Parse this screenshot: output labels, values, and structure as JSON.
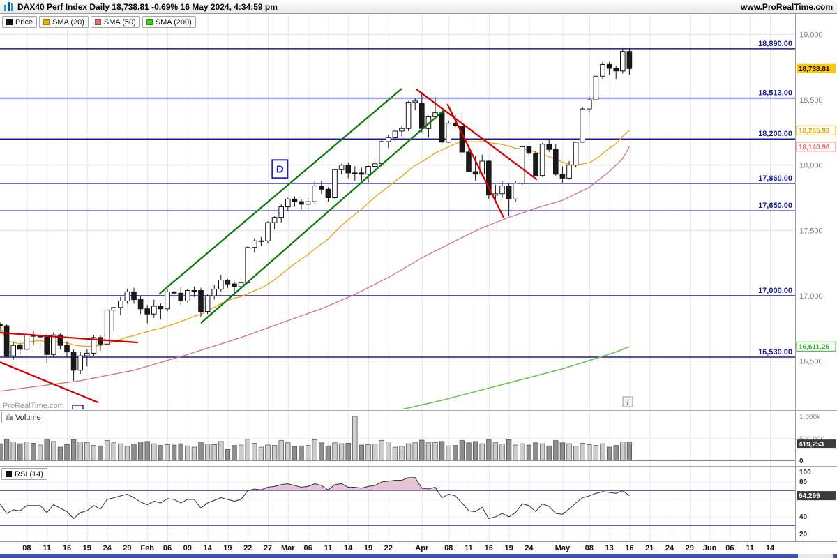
{
  "title_bar": {
    "instrument": "DAX40 Perf Index Daily",
    "price": "18,738.81",
    "change": "-0.69%",
    "datetime": "16 May 2024, 4:34:59 pm",
    "website": "www.ProRealTime.com"
  },
  "legend": {
    "price": {
      "label": "Price",
      "color": "#141414"
    },
    "smas": [
      {
        "label": "SMA (20)",
        "color": "#f0b000"
      },
      {
        "label": "SMA (50)",
        "color": "#e06e6e"
      },
      {
        "label": "SMA (200)",
        "color": "#3fd40f"
      }
    ]
  },
  "volume_panel": {
    "label": "Volume",
    "axis_labels": [
      {
        "v": 1000,
        "label": "1,000k"
      },
      {
        "v": 500,
        "label": "500,000"
      },
      {
        "v": 0,
        "label": "0"
      }
    ],
    "current_label": "419,253",
    "current_value": 419.253
  },
  "rsi_panel": {
    "label": "RSI (14)",
    "axis_values": [
      100,
      80,
      40,
      20
    ],
    "bands": [
      70,
      30
    ],
    "current_label": "64.299",
    "current_value": 64.299
  },
  "watermark": "ProRealTime.com",
  "info_icon_glyph": "i",
  "chart_data": {
    "type": "candlestick",
    "title": "DAX40 Perf Index Daily",
    "last_price": 18738.81,
    "change_pct": -0.69,
    "legend_position": "top-left",
    "grid": true,
    "y_ticks": [
      {
        "v": 19000,
        "label": "19,000"
      },
      {
        "v": 18500,
        "label": "18,500"
      },
      {
        "v": 18000,
        "label": "18,000"
      },
      {
        "v": 17500,
        "label": "17,500"
      },
      {
        "v": 17000,
        "label": "17,000"
      },
      {
        "v": 16500,
        "label": "16,500"
      }
    ],
    "levels": [
      {
        "v": 18890,
        "label": "18,890.00"
      },
      {
        "v": 18513,
        "label": "18,513.00"
      },
      {
        "v": 18200,
        "label": "18,200.00"
      },
      {
        "v": 17860,
        "label": "17,860.00"
      },
      {
        "v": 17650,
        "label": "17,650.00"
      },
      {
        "v": 17000,
        "label": "17,000.00"
      },
      {
        "v": 16530,
        "label": "16,530.00"
      }
    ],
    "x_ticks": [
      [
        4,
        "08"
      ],
      [
        7,
        "11"
      ],
      [
        10,
        "16"
      ],
      [
        13,
        "19"
      ],
      [
        16,
        "24"
      ],
      [
        19,
        "29"
      ],
      [
        22,
        "Feb"
      ],
      [
        25,
        "06"
      ],
      [
        28,
        "09"
      ],
      [
        31,
        "14"
      ],
      [
        34,
        "19"
      ],
      [
        37,
        "22"
      ],
      [
        40,
        "27"
      ],
      [
        43,
        "Mar"
      ],
      [
        46,
        "06"
      ],
      [
        49,
        "11"
      ],
      [
        52,
        "14"
      ],
      [
        55,
        "19"
      ],
      [
        58,
        "22"
      ],
      [
        63,
        "Apr"
      ],
      [
        67,
        "08"
      ],
      [
        70,
        "11"
      ],
      [
        73,
        "16"
      ],
      [
        76,
        "19"
      ],
      [
        79,
        "24"
      ],
      [
        84,
        "May"
      ],
      [
        88,
        "08"
      ],
      [
        91,
        "13"
      ],
      [
        94,
        "16"
      ],
      [
        97,
        "21"
      ],
      [
        100,
        "24"
      ],
      [
        103,
        "29"
      ],
      [
        106,
        "Jun"
      ],
      [
        109,
        "06"
      ],
      [
        112,
        "11"
      ],
      [
        115,
        "14"
      ]
    ],
    "colors": {
      "level": "#1a1a90",
      "up": "#ffffff",
      "down": "#1a1a1a",
      "sma20": "#e8a820",
      "sma50": "#cd7d88",
      "sma200": "#6cc24a",
      "trend_green": "#0b7a0b",
      "trend_red": "#d40000",
      "rsi_fill": "#d3a0b4",
      "band": "#5d5dc8",
      "grid": "#e6e6e6",
      "last_price_bg": "#ffc40c"
    },
    "candles": [
      [
        "Jan 02",
        16780,
        16800,
        16720,
        16770,
        380,
        55
      ],
      [
        "Jan 03",
        16770,
        16780,
        16530,
        16540,
        480,
        44
      ],
      [
        "Jan 04",
        16540,
        16650,
        16510,
        16620,
        420,
        48
      ],
      [
        "Jan 05",
        16620,
        16650,
        16550,
        16590,
        380,
        47
      ],
      [
        "Jan 08",
        16590,
        16720,
        16560,
        16700,
        420,
        53
      ],
      [
        "Jan 09",
        16700,
        16730,
        16620,
        16690,
        390,
        53
      ],
      [
        "Jan 10",
        16690,
        16730,
        16610,
        16690,
        350,
        53
      ],
      [
        "Jan 11",
        16690,
        16710,
        16480,
        16550,
        480,
        45
      ],
      [
        "Jan 12",
        16550,
        16720,
        16530,
        16700,
        430,
        54
      ],
      [
        "Jan 15",
        16700,
        16710,
        16590,
        16620,
        300,
        50
      ],
      [
        "Jan 16",
        16620,
        16650,
        16530,
        16570,
        360,
        46
      ],
      [
        "Jan 17",
        16570,
        16590,
        16350,
        16430,
        470,
        38
      ],
      [
        "Jan 18",
        16430,
        16570,
        16400,
        16540,
        420,
        45
      ],
      [
        "Jan 19",
        16540,
        16590,
        16460,
        16560,
        410,
        47
      ],
      [
        "Jan 22",
        16560,
        16700,
        16540,
        16680,
        340,
        53
      ],
      [
        "Jan 23",
        16680,
        16700,
        16580,
        16630,
        330,
        49
      ],
      [
        "Jan 24",
        16630,
        16910,
        16610,
        16890,
        450,
        60
      ],
      [
        "Jan 25",
        16890,
        16910,
        16730,
        16910,
        400,
        62
      ],
      [
        "Jan 26",
        16910,
        16990,
        16850,
        16960,
        380,
        64
      ],
      [
        "Jan 29",
        16960,
        17050,
        16940,
        17030,
        320,
        66
      ],
      [
        "Jan 30",
        17030,
        17060,
        16940,
        16970,
        370,
        62
      ],
      [
        "Jan 31",
        16970,
        17000,
        16860,
        16900,
        420,
        57
      ],
      [
        "Feb 01",
        16900,
        16930,
        16790,
        16860,
        430,
        54
      ],
      [
        "Feb 02",
        16860,
        16970,
        16830,
        16920,
        380,
        58
      ],
      [
        "Feb 05",
        16920,
        16940,
        16820,
        16900,
        340,
        56
      ],
      [
        "Feb 06",
        16900,
        17050,
        16880,
        17030,
        360,
        61
      ],
      [
        "Feb 07",
        17030,
        17060,
        16970,
        17020,
        350,
        60
      ],
      [
        "Feb 08",
        17020,
        17070,
        16930,
        16960,
        380,
        56
      ],
      [
        "Feb 09",
        16960,
        17050,
        16950,
        17040,
        330,
        60
      ],
      [
        "Feb 12",
        17040,
        17070,
        16990,
        17040,
        300,
        60
      ],
      [
        "Feb 13",
        17040,
        17060,
        16840,
        16880,
        420,
        50
      ],
      [
        "Feb 14",
        16880,
        17010,
        16860,
        17000,
        370,
        56
      ],
      [
        "Feb 15",
        17000,
        17080,
        16970,
        17050,
        360,
        59
      ],
      [
        "Feb 16",
        17050,
        17160,
        17030,
        17120,
        430,
        62
      ],
      [
        "Feb 19",
        17120,
        17130,
        17060,
        17090,
        250,
        60
      ],
      [
        "Feb 20",
        17090,
        17110,
        17000,
        17070,
        340,
        58
      ],
      [
        "Feb 21",
        17070,
        17130,
        17030,
        17100,
        350,
        60
      ],
      [
        "Feb 22",
        17100,
        17380,
        17090,
        17370,
        480,
        70
      ],
      [
        "Feb 23",
        17370,
        17440,
        17330,
        17420,
        390,
        72
      ],
      [
        "Feb 26",
        17420,
        17450,
        17380,
        17420,
        300,
        71
      ],
      [
        "Feb 27",
        17420,
        17570,
        17400,
        17560,
        350,
        74
      ],
      [
        "Feb 28",
        17560,
        17610,
        17510,
        17600,
        340,
        75
      ],
      [
        "Feb 29",
        17600,
        17700,
        17560,
        17680,
        450,
        77
      ],
      [
        "Mar 01",
        17680,
        17750,
        17650,
        17740,
        400,
        78
      ],
      [
        "Mar 04",
        17740,
        17760,
        17680,
        17720,
        310,
        76
      ],
      [
        "Mar 05",
        17720,
        17740,
        17660,
        17700,
        330,
        74
      ],
      [
        "Mar 06",
        17700,
        17750,
        17660,
        17720,
        340,
        75
      ],
      [
        "Mar 07",
        17720,
        17880,
        17700,
        17840,
        470,
        78
      ],
      [
        "Mar 08",
        17840,
        17880,
        17780,
        17815,
        400,
        76
      ],
      [
        "Mar 11",
        17815,
        17830,
        17720,
        17750,
        330,
        71
      ],
      [
        "Mar 12",
        17750,
        17970,
        17740,
        17965,
        400,
        77
      ],
      [
        "Mar 13",
        17965,
        18010,
        17930,
        18000,
        380,
        78
      ],
      [
        "Mar 14",
        18000,
        18020,
        17900,
        17940,
        390,
        74
      ],
      [
        "Mar 15",
        17940,
        17990,
        17880,
        17940,
        1000,
        74
      ],
      [
        "Mar 18",
        17940,
        17980,
        17880,
        17930,
        350,
        73
      ],
      [
        "Mar 19",
        17930,
        18000,
        17860,
        17990,
        360,
        75
      ],
      [
        "Mar 20",
        17990,
        18030,
        17920,
        18010,
        370,
        76
      ],
      [
        "Mar 21",
        18010,
        18190,
        17990,
        18180,
        450,
        80
      ],
      [
        "Mar 22",
        18180,
        18230,
        18130,
        18210,
        420,
        81
      ],
      [
        "Mar 25",
        18210,
        18280,
        18180,
        18260,
        300,
        82
      ],
      [
        "Mar 26",
        18260,
        18300,
        18220,
        18280,
        320,
        82
      ],
      [
        "Mar 27",
        18280,
        18490,
        18260,
        18480,
        380,
        85
      ],
      [
        "Mar 28",
        18480,
        18510,
        18420,
        18490,
        400,
        85
      ],
      [
        "Apr 02",
        18470,
        18560,
        18250,
        18280,
        460,
        73
      ],
      [
        "Apr 03",
        18280,
        18380,
        18210,
        18370,
        400,
        72
      ],
      [
        "Apr 04",
        18370,
        18520,
        18350,
        18400,
        410,
        74
      ],
      [
        "Apr 05",
        18400,
        18420,
        18140,
        18175,
        430,
        62
      ],
      [
        "Apr 08",
        18175,
        18340,
        18170,
        18320,
        330,
        66
      ],
      [
        "Apr 09",
        18320,
        18390,
        18280,
        18300,
        340,
        64
      ],
      [
        "Apr 10",
        18300,
        18400,
        18060,
        18100,
        450,
        56
      ],
      [
        "Apr 11",
        18100,
        18150,
        17950,
        17950,
        400,
        47
      ],
      [
        "Apr 12",
        17950,
        18070,
        17880,
        17930,
        430,
        46
      ],
      [
        "Apr 15",
        17930,
        18080,
        17910,
        18030,
        380,
        51
      ],
      [
        "Apr 16",
        18030,
        18040,
        17740,
        17770,
        480,
        38
      ],
      [
        "Apr 17",
        17770,
        17850,
        17710,
        17780,
        400,
        40
      ],
      [
        "Apr 18",
        17780,
        17880,
        17750,
        17840,
        370,
        44
      ],
      [
        "Apr 19",
        17840,
        17860,
        17610,
        17740,
        470,
        40
      ],
      [
        "Apr 22",
        17740,
        17880,
        17720,
        17860,
        350,
        45
      ],
      [
        "Apr 23",
        17860,
        18150,
        17850,
        18140,
        380,
        55
      ],
      [
        "Apr 24",
        18140,
        18180,
        18060,
        18090,
        350,
        53
      ],
      [
        "Apr 25",
        18090,
        18110,
        17910,
        17920,
        400,
        46
      ],
      [
        "Apr 26",
        17920,
        18170,
        17910,
        18160,
        380,
        55
      ],
      [
        "Apr 29",
        18160,
        18200,
        18100,
        18120,
        330,
        52
      ],
      [
        "Apr 30",
        18120,
        18160,
        17920,
        17930,
        450,
        44
      ],
      [
        "May 02",
        17930,
        17990,
        17860,
        17900,
        400,
        43
      ],
      [
        "May 03",
        17900,
        18030,
        17890,
        18000,
        380,
        49
      ],
      [
        "May 06",
        18000,
        18180,
        17980,
        18175,
        320,
        56
      ],
      [
        "May 07",
        18175,
        18440,
        18170,
        18430,
        390,
        62
      ],
      [
        "May 08",
        18430,
        18520,
        18400,
        18500,
        360,
        64
      ],
      [
        "May 09",
        18500,
        18690,
        18480,
        18680,
        340,
        67
      ],
      [
        "May 10",
        18680,
        18790,
        18660,
        18770,
        380,
        69
      ],
      [
        "May 13",
        18770,
        18790,
        18690,
        18740,
        300,
        68
      ],
      [
        "May 14",
        18740,
        18760,
        18660,
        18720,
        340,
        67
      ],
      [
        "May 15",
        18720,
        18890,
        18700,
        18870,
        420,
        70
      ],
      [
        "May 16",
        18870,
        18892,
        18690,
        18738.81,
        419.253,
        64.299
      ]
    ],
    "sma50_points": [
      [
        0,
        16270
      ],
      [
        12,
        16350
      ],
      [
        20,
        16430
      ],
      [
        28,
        16550
      ],
      [
        36,
        16680
      ],
      [
        43,
        16810
      ],
      [
        48,
        16900
      ],
      [
        53,
        17010
      ],
      [
        58,
        17140
      ],
      [
        63,
        17290
      ],
      [
        68,
        17420
      ],
      [
        72,
        17520
      ],
      [
        76,
        17600
      ],
      [
        80,
        17670
      ],
      [
        84,
        17730
      ],
      [
        88,
        17830
      ],
      [
        91,
        17950
      ],
      [
        93,
        18050
      ],
      [
        94,
        18141
      ]
    ],
    "sma200_points": [
      [
        60,
        16130
      ],
      [
        66,
        16200
      ],
      [
        72,
        16280
      ],
      [
        78,
        16360
      ],
      [
        84,
        16440
      ],
      [
        89,
        16520
      ],
      [
        92,
        16570
      ],
      [
        94,
        16611
      ]
    ],
    "sma_badges": [
      {
        "value": 18265.93,
        "label": "18,265.93",
        "color": "#e0a010"
      },
      {
        "value": 18140.96,
        "label": "18,140.96",
        "color": "#e06a6a"
      },
      {
        "value": 16611.26,
        "label": "16,611.26",
        "color": "#2fae2f"
      }
    ],
    "trendlines": [
      {
        "from": [
          0,
          16717
        ],
        "to": [
          20.6,
          16642
        ],
        "color": "#d40000"
      },
      {
        "from": [
          0,
          16492
        ],
        "to": [
          14.7,
          16182
        ],
        "color": "#d40000"
      },
      {
        "from": [
          23.8,
          17015
        ],
        "to": [
          60,
          18585
        ],
        "color": "#0b7a0b"
      },
      {
        "from": [
          30,
          16790
        ],
        "to": [
          66.4,
          18425
        ],
        "color": "#0b7a0b"
      },
      {
        "from": [
          62.2,
          18580
        ],
        "to": [
          80.2,
          17888
        ],
        "color": "#d40000"
      },
      {
        "from": [
          66.8,
          18468
        ],
        "to": [
          75.2,
          17600
        ],
        "color": "#d40000"
      }
    ],
    "annotations": [
      {
        "text": "D",
        "i": 41.8,
        "price": 17970
      }
    ]
  }
}
